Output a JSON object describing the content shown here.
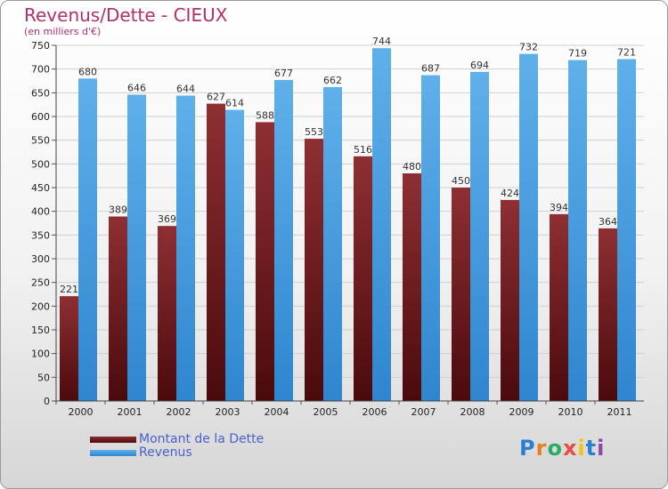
{
  "title": "Revenus/Dette - CIEUX",
  "subtitle": "(en milliers d'€)",
  "colors": {
    "debt": "#7a1f24",
    "revenue": "#4aa0e0",
    "title": "#b0306a",
    "legend_text": "#4a5fd0"
  },
  "logo": {
    "text": "Proxiti",
    "letters": [
      "P",
      "r",
      "o",
      "x",
      "i",
      "t",
      "i"
    ],
    "colors": [
      "#2a7fd0",
      "#e67e22",
      "#27ae60",
      "#e74c3c",
      "#f1c40f",
      "#2a7fd0",
      "#8e44ad"
    ]
  },
  "chart_data": {
    "type": "bar",
    "categories": [
      "2000",
      "2001",
      "2002",
      "2003",
      "2004",
      "2005",
      "2006",
      "2007",
      "2008",
      "2009",
      "2010",
      "2011"
    ],
    "series": [
      {
        "name": "Montant de la Dette",
        "values": [
          221,
          389,
          369,
          627,
          588,
          553,
          516,
          480,
          450,
          424,
          394,
          364
        ]
      },
      {
        "name": "Revenus",
        "values": [
          680,
          646,
          644,
          614,
          677,
          662,
          744,
          687,
          694,
          732,
          719,
          721
        ]
      }
    ],
    "ylim": [
      0,
      750
    ],
    "yticks": [
      0,
      50,
      100,
      150,
      200,
      250,
      300,
      350,
      400,
      450,
      500,
      550,
      600,
      650,
      700,
      750
    ],
    "grid": true,
    "legend": "bottom-left"
  }
}
